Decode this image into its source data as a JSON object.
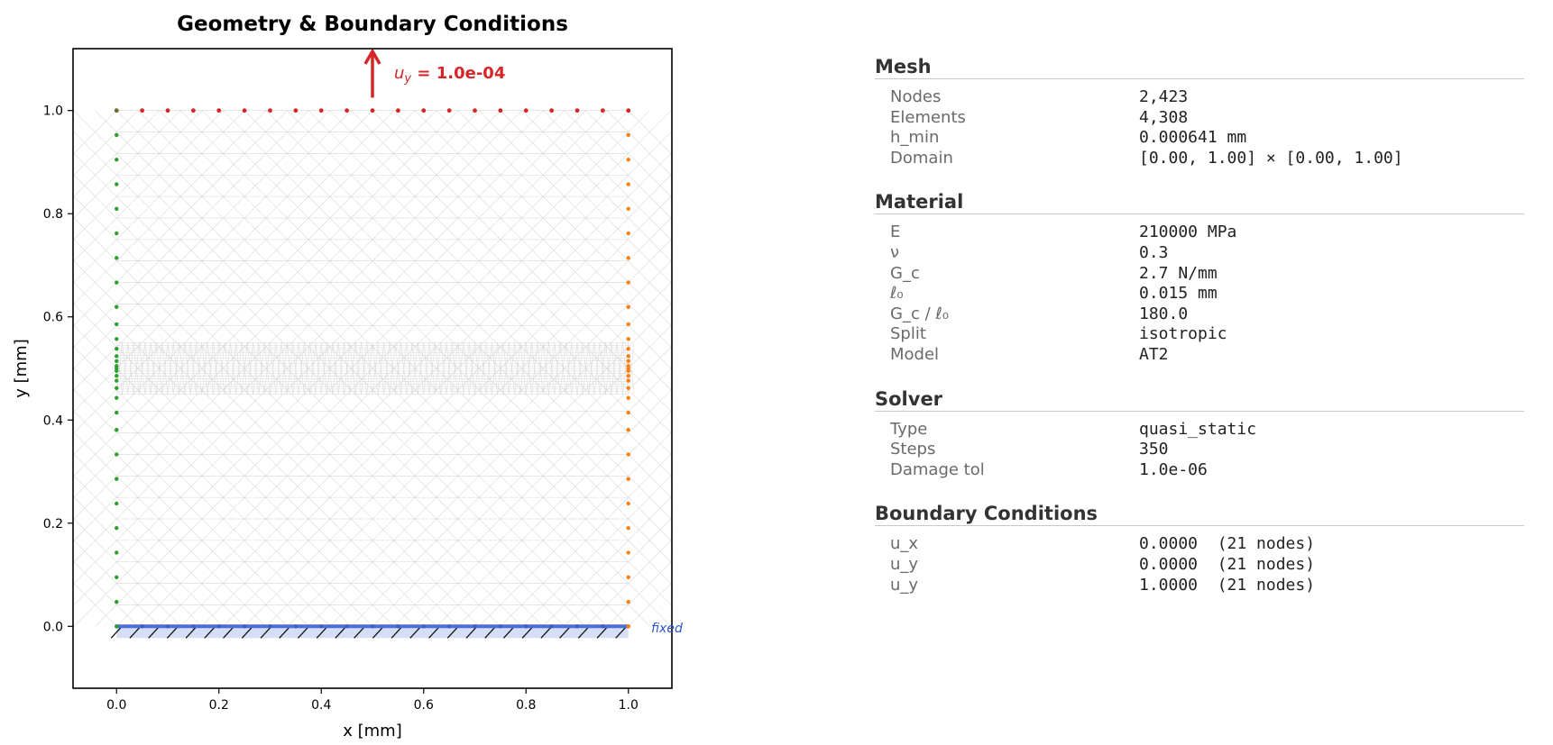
{
  "chart_data": {
    "type": "scatter",
    "title": "Geometry & Boundary Conditions",
    "xlabel": "x [mm]",
    "ylabel": "y [mm]",
    "xlim": [
      -0.085,
      1.085
    ],
    "ylim": [
      -0.12,
      1.12
    ],
    "xticks": [
      "0.0",
      "0.2",
      "0.4",
      "0.6",
      "0.8",
      "1.0"
    ],
    "yticks": [
      "0.0",
      "0.2",
      "0.4",
      "0.6",
      "0.8",
      "1.0"
    ],
    "load_label_var": "u",
    "load_label_sub": "y",
    "load_label_value": " = 1.0e-04",
    "fixed_label": "fixed",
    "colors": {
      "top": "#d62728",
      "left": "#2ca02c",
      "right": "#ff7f0e",
      "bottom": "#4a6fd8",
      "load": "#d62728",
      "fixed_text": "#2b55c9",
      "mesh": "#cfcfcf"
    },
    "top_nodes_x": [
      0.0,
      0.05,
      0.1,
      0.15,
      0.2,
      0.25,
      0.3,
      0.35,
      0.4,
      0.45,
      0.5,
      0.55,
      0.6,
      0.65,
      0.7,
      0.75,
      0.8,
      0.85,
      0.9,
      0.95,
      1.0
    ],
    "side_nodes_y": [
      0.0,
      0.0476,
      0.0952,
      0.1429,
      0.1905,
      0.2381,
      0.2857,
      0.3333,
      0.381,
      0.4143,
      0.4429,
      0.4619,
      0.4762,
      0.4857,
      0.4952,
      0.5,
      0.5048,
      0.5143,
      0.5238,
      0.5381,
      0.5571,
      0.5857,
      0.619,
      0.6667,
      0.7143,
      0.7619,
      0.8095,
      0.8571,
      0.9048,
      0.9524,
      1.0
    ],
    "bottom_nodes_x": [
      0.0,
      0.05,
      0.1,
      0.15,
      0.2,
      0.25,
      0.3,
      0.35,
      0.4,
      0.45,
      0.5,
      0.55,
      0.6,
      0.65,
      0.7,
      0.75,
      0.8,
      0.85,
      0.9,
      0.95,
      1.0
    ],
    "load_arrow": {
      "x": 0.5,
      "y_from": 1.025,
      "y_to": 1.115
    }
  },
  "panel": {
    "sections": [
      {
        "title": "Mesh",
        "rows": [
          {
            "label": "Nodes",
            "value": "2,423"
          },
          {
            "label": "Elements",
            "value": "4,308"
          },
          {
            "label": "h_min",
            "value": "0.000641 mm"
          },
          {
            "label": "Domain",
            "value": "[0.00, 1.00] × [0.00, 1.00]"
          }
        ]
      },
      {
        "title": "Material",
        "rows": [
          {
            "label": "E",
            "value": "210000 MPa"
          },
          {
            "label": "ν",
            "value": "0.3"
          },
          {
            "label": "G_c",
            "value": "2.7 N/mm"
          },
          {
            "label": "ℓ₀",
            "value": "0.015 mm"
          },
          {
            "label": "G_c / ℓ₀",
            "value": "180.0"
          },
          {
            "label": "Split",
            "value": "isotropic"
          },
          {
            "label": "Model",
            "value": "AT2"
          }
        ]
      },
      {
        "title": "Solver",
        "rows": [
          {
            "label": "Type",
            "value": "quasi_static"
          },
          {
            "label": "Steps",
            "value": "350"
          },
          {
            "label": "Damage tol",
            "value": "1.0e-06"
          }
        ]
      },
      {
        "title": "Boundary Conditions",
        "rows": [
          {
            "label": "u_x",
            "value": "0.0000  (21 nodes)"
          },
          {
            "label": "u_y",
            "value": "0.0000  (21 nodes)"
          },
          {
            "label": "u_y",
            "value": "1.0000  (21 nodes)"
          }
        ]
      }
    ]
  }
}
